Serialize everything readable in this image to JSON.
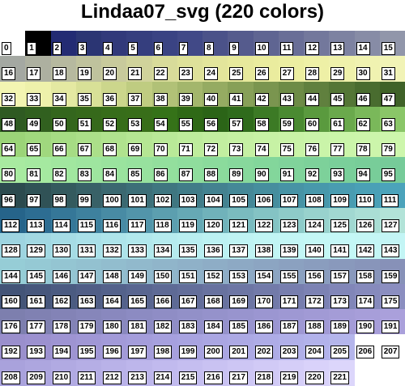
{
  "title": "Lindaa07_svg (220 colors)",
  "columns": 16,
  "colors": [
    "#ffffff",
    "#000000",
    "#232b73",
    "#2b3573",
    "#31397a",
    "#353e7e",
    "#3a4383",
    "#414987",
    "#4b5289",
    "#555b8d",
    "#5f6592",
    "#696e97",
    "#73789c",
    "#7d82a1",
    "#878ca6",
    "#9196aa",
    "#a4a8a2",
    "#adb0a0",
    "#b6b99f",
    "#bfc29d",
    "#c8ca9c",
    "#d0d39b",
    "#d8db9a",
    "#dee19a",
    "#e3e59b",
    "#e7e99c",
    "#eaec9e",
    "#eceea1",
    "#eef0a6",
    "#eff1ab",
    "#f0f2b1",
    "#f1f3b6",
    "#f3f5b2",
    "#eef1ab",
    "#e4e9a2",
    "#d8e097",
    "#ccd68c",
    "#bfcc81",
    "#b1c177",
    "#a3b66c",
    "#95ab62",
    "#87a058",
    "#7a954f",
    "#6d8b46",
    "#60803e",
    "#547636",
    "#496c2f",
    "#3f6228",
    "#2f5a22",
    "#31601f",
    "#34661d",
    "#36691b",
    "#376d1a",
    "#386e19",
    "#357218",
    "#2f6916",
    "#2b6417",
    "#2f6b1c",
    "#3c7a25",
    "#4a8a31",
    "#5a9a3e",
    "#6aa94c",
    "#7ab85a",
    "#8ac668",
    "#9bd478",
    "#a0d87e",
    "#a6dc84",
    "#abdf89",
    "#b0e28e",
    "#b5e693",
    "#b9e998",
    "#beec9c",
    "#c2eea0",
    "#c5f0a3",
    "#c7f2a5",
    "#c9f3a7",
    "#caf4a9",
    "#cbf5aa",
    "#ccf5ab",
    "#cdf6ac",
    "#a8eaa0",
    "#a5e9a0",
    "#a1e79f",
    "#9ee59f",
    "#9ae39e",
    "#97e19e",
    "#93df9d",
    "#8fdd9d",
    "#8bdb9c",
    "#87d89c",
    "#83d69b",
    "#80d39b",
    "#7dd19a",
    "#7acf9a",
    "#78cd99",
    "#76cb99",
    "#2c4a4e",
    "#305256",
    "#345a5e",
    "#386167",
    "#3b6870",
    "#3d6f78",
    "#3f7680",
    "#417c88",
    "#438290",
    "#458897",
    "#468e9e",
    "#4793a5",
    "#4898ab",
    "#499cb1",
    "#4aa0b6",
    "#4ba3bb",
    "#26648a",
    "#2d6d92",
    "#357798",
    "#3e819e",
    "#488ba4",
    "#5295aa",
    "#5c9faf",
    "#66a9b5",
    "#70b2ba",
    "#7abbbf",
    "#84c3c4",
    "#8ecbc9",
    "#98d2cd",
    "#a1d8d1",
    "#aaded5",
    "#b2e3d8",
    "#9ed4e0",
    "#a2d8e2",
    "#a6dce5",
    "#aae0e8",
    "#aee4ea",
    "#b2e8ec",
    "#b6ebee",
    "#b9eef0",
    "#bcf1f2",
    "#bff3f3",
    "#c1f5f4",
    "#c3f6f5",
    "#c4f7f5",
    "#c4f7f6",
    "#c4f6f5",
    "#c3f5f5",
    "#96cdd6",
    "#95c9d4",
    "#94c5d2",
    "#93c1d0",
    "#92bdce",
    "#91b9cc",
    "#90b5ca",
    "#8fb1c8",
    "#8eadc6",
    "#8da9c4",
    "#8ca5c2",
    "#8ba1c0",
    "#8a9dbe",
    "#8999bc",
    "#8895ba",
    "#8791b8",
    "#435477",
    "#47577c",
    "#4b5b81",
    "#505e86",
    "#54628b",
    "#596690",
    "#5e6a95",
    "#636e9a",
    "#68729f",
    "#6d76a4",
    "#727aa9",
    "#777eae",
    "#7c82b3",
    "#8186b8",
    "#868abc",
    "#8b8ec0",
    "#7d7fae",
    "#8081b2",
    "#8383b6",
    "#8686ba",
    "#8988be",
    "#8c8bc2",
    "#8f8dc5",
    "#9290c8",
    "#9592cb",
    "#9894ce",
    "#9b96d1",
    "#9e98d3",
    "#a19ad5",
    "#a49cd7",
    "#a79ed9",
    "#aaa0db",
    "#9a8fcc",
    "#9c91cf",
    "#9e94d2",
    "#a097d5",
    "#a29ad8",
    "#a49ddb",
    "#a6a0de",
    "#a8a3e0",
    "#aaa6e2",
    "#aca9e4",
    "#aeace6",
    "#b0afe8",
    "#b2b2ea",
    "#b4b5eb",
    "#ffffff",
    "#ffffff",
    "#a9a2dc",
    "#ada6df",
    "#b1aae2",
    "#b5aee5",
    "#b9b2e8",
    "#bdb6eb",
    "#c1baee",
    "#c5bef0",
    "#c9c2f2",
    "#cdc6f4",
    "#d1caf6",
    "#d5cef8",
    "#d9d2fa",
    "#dcd6fb",
    "#ffffff",
    "#ffffff"
  ],
  "labels": [
    "0",
    "1",
    "2",
    "3",
    "4",
    "5",
    "6",
    "7",
    "8",
    "9",
    "10",
    "11",
    "12",
    "13",
    "14",
    "15",
    "16",
    "17",
    "18",
    "19",
    "20",
    "21",
    "22",
    "23",
    "24",
    "25",
    "26",
    "27",
    "28",
    "29",
    "30",
    "31",
    "32",
    "33",
    "34",
    "35",
    "36",
    "37",
    "38",
    "39",
    "40",
    "41",
    "42",
    "43",
    "44",
    "45",
    "46",
    "47",
    "48",
    "49",
    "50",
    "51",
    "52",
    "53",
    "54",
    "55",
    "56",
    "57",
    "58",
    "59",
    "60",
    "61",
    "62",
    "63",
    "64",
    "65",
    "66",
    "67",
    "68",
    "69",
    "70",
    "71",
    "72",
    "73",
    "74",
    "75",
    "76",
    "77",
    "78",
    "79",
    "80",
    "81",
    "82",
    "83",
    "84",
    "85",
    "86",
    "87",
    "88",
    "89",
    "90",
    "91",
    "92",
    "93",
    "94",
    "95",
    "96",
    "97",
    "98",
    "99",
    "100",
    "101",
    "102",
    "103",
    "104",
    "105",
    "106",
    "107",
    "108",
    "109",
    "110",
    "111",
    "112",
    "113",
    "114",
    "115",
    "116",
    "117",
    "118",
    "119",
    "120",
    "121",
    "122",
    "123",
    "124",
    "125",
    "126",
    "127",
    "128",
    "129",
    "130",
    "131",
    "132",
    "133",
    "134",
    "135",
    "136",
    "137",
    "138",
    "139",
    "140",
    "141",
    "142",
    "143",
    "144",
    "145",
    "146",
    "147",
    "148",
    "149",
    "150",
    "151",
    "152",
    "153",
    "154",
    "155",
    "156",
    "157",
    "158",
    "159",
    "160",
    "161",
    "162",
    "163",
    "164",
    "165",
    "166",
    "167",
    "168",
    "169",
    "170",
    "171",
    "172",
    "173",
    "174",
    "175",
    "176",
    "177",
    "178",
    "179",
    "180",
    "181",
    "182",
    "183",
    "184",
    "185",
    "186",
    "187",
    "188",
    "189",
    "190",
    "191",
    "192",
    "193",
    "194",
    "195",
    "196",
    "197",
    "198",
    "199",
    "200",
    "201",
    "202",
    "203",
    "204",
    "205",
    "206",
    "207",
    "208",
    "209",
    "210",
    "211",
    "212",
    "213",
    "214",
    "215",
    "216",
    "217",
    "218",
    "219",
    "220",
    "221",
    "",
    ""
  ]
}
